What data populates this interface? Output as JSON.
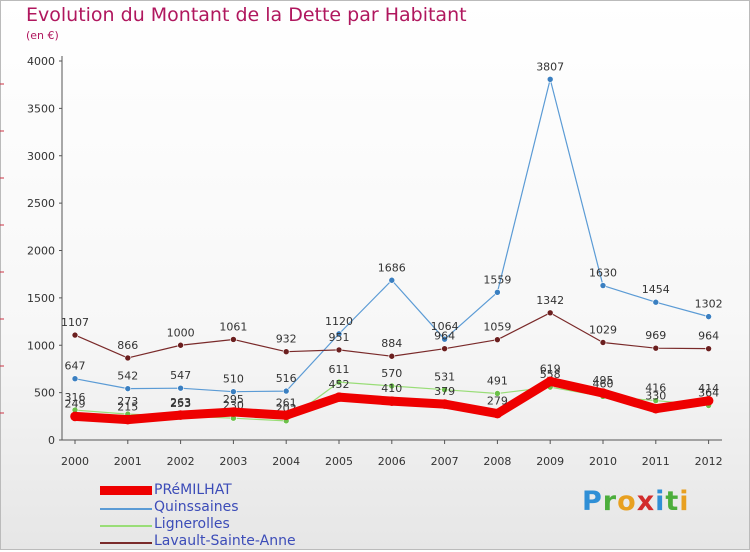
{
  "title": "Evolution du Montant de la Dette par Habitant",
  "subtitle": "(en €)",
  "logo": {
    "text": "Proxiti",
    "letter_colors": [
      "#2f8fd6",
      "#4cae3c",
      "#e8a020",
      "#d22c2c",
      "#2f8fd6",
      "#4cae3c",
      "#e8a020"
    ]
  },
  "chart_data": {
    "type": "line",
    "x": [
      "2000",
      "2001",
      "2002",
      "2003",
      "2004",
      "2005",
      "2006",
      "2007",
      "2008",
      "2009",
      "2010",
      "2011",
      "2012"
    ],
    "ylim": [
      0,
      4000
    ],
    "yticks": [
      "0",
      "500",
      "1000",
      "1500",
      "2000",
      "2500",
      "3000",
      "3500",
      "4000"
    ],
    "grid": false,
    "legend_position": "bottom-left",
    "series": [
      {
        "name": "Quinssaines",
        "color": "#5b9bd5",
        "marker": "#3a7fc1",
        "width": 1.2,
        "values": [
          647,
          542,
          547,
          510,
          516,
          1120,
          1686,
          1064,
          1559,
          3807,
          1630,
          1454,
          1302
        ],
        "labels": [
          "647",
          "542",
          "547",
          "510",
          "516",
          "1120",
          "1686",
          "1064",
          "1559",
          "3807",
          "1630",
          "1454",
          "1302"
        ]
      },
      {
        "name": "Lavault-Sainte-Anne",
        "color": "#7a2a2a",
        "marker": "#6b1f1f",
        "width": 1.2,
        "values": [
          1107,
          866,
          1000,
          1061,
          932,
          951,
          884,
          964,
          1059,
          1342,
          1029,
          969,
          964
        ],
        "labels": [
          "1107",
          "866",
          "1000",
          "1061",
          "932",
          "951",
          "884",
          "964",
          "1059",
          "1342",
          "1029",
          "969",
          "964"
        ]
      },
      {
        "name": "Lignerolles",
        "color": "#99dd77",
        "marker": "#6cc04a",
        "width": 1.2,
        "values": [
          316,
          273,
          253,
          230,
          202,
          611,
          570,
          531,
          491,
          558,
          460,
          416,
          364
        ],
        "labels": [
          "316",
          "273",
          "253",
          "230",
          "202",
          "611",
          "570",
          "531",
          "491",
          "558",
          "460",
          "416",
          "364"
        ]
      },
      {
        "name": "PRéMILHAT",
        "color": "#ee0000",
        "marker": "#ee0000",
        "width": 9,
        "values": [
          249,
          215,
          263,
          295,
          261,
          452,
          410,
          379,
          279,
          619,
          495,
          330,
          414
        ],
        "labels": [
          "249",
          "215",
          "263",
          "295",
          "261",
          "452",
          "410",
          "379",
          "279",
          "619",
          "495",
          "330",
          "414"
        ]
      }
    ]
  }
}
